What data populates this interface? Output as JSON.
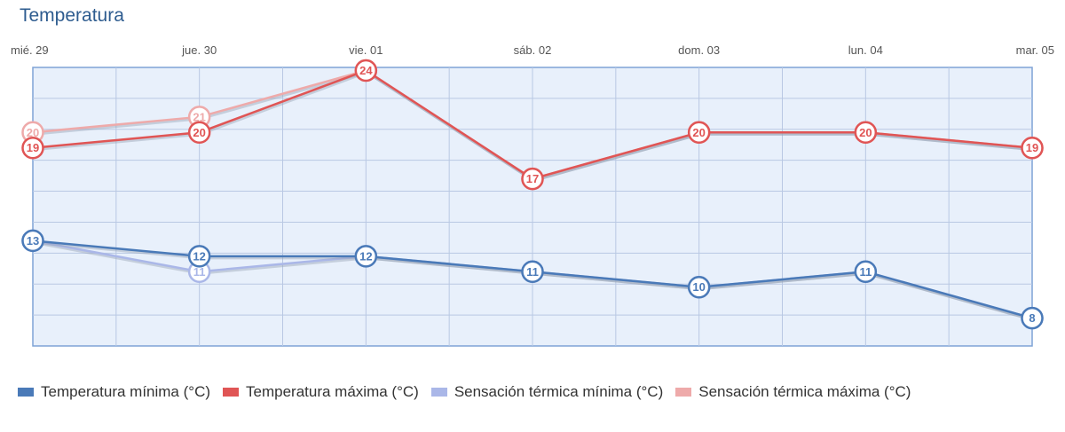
{
  "title": "Temperatura",
  "chart_data": {
    "type": "line",
    "title": "Temperatura",
    "categories": [
      "mié. 29",
      "jue. 30",
      "vie. 01",
      "sáb. 02",
      "dom. 03",
      "lun. 04",
      "mar. 05"
    ],
    "ylim": [
      6.2,
      24.2
    ],
    "grid": true,
    "legend_position": "bottom",
    "series": [
      {
        "name": "Temperatura mínima (°C)",
        "color": "#4a7ab8",
        "values": [
          13,
          12,
          12,
          11,
          10,
          11,
          8
        ]
      },
      {
        "name": "Temperatura máxima (°C)",
        "color": "#e05555",
        "values": [
          19,
          20,
          24,
          17,
          20,
          20,
          19
        ]
      },
      {
        "name": "Sensación térmica mínima (°C)",
        "color": "#aab7e8",
        "values": [
          13,
          11,
          12,
          11,
          10,
          11,
          8
        ]
      },
      {
        "name": "Sensación térmica máxima (°C)",
        "color": "#eeaaaa",
        "values": [
          20,
          21,
          24,
          17,
          20,
          20,
          19
        ]
      }
    ]
  }
}
